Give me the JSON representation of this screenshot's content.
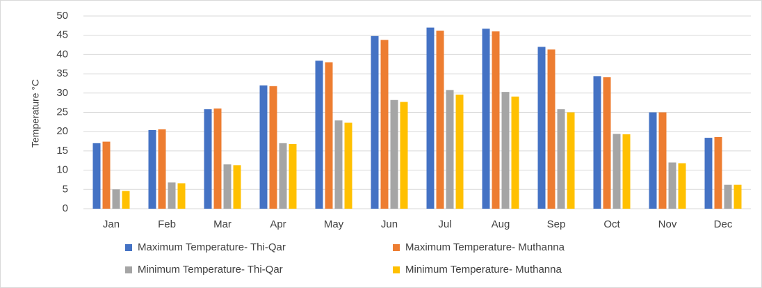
{
  "chart_data": {
    "type": "bar",
    "y_label": "Temperature °C",
    "categories": [
      "Jan",
      "Feb",
      "Mar",
      "Apr",
      "May",
      "Jun",
      "Jul",
      "Aug",
      "Sep",
      "Oct",
      "Nov",
      "Dec"
    ],
    "series": [
      {
        "name": "Maximum Temperature- Thi-Qar",
        "color": "#4472c4",
        "values": [
          17,
          20.4,
          25.8,
          32,
          38.4,
          44.8,
          47,
          46.7,
          42,
          34.4,
          25,
          18.4
        ]
      },
      {
        "name": "Maximum Temperature- Muthanna",
        "color": "#ed7d31",
        "values": [
          17.4,
          20.6,
          26,
          31.8,
          38,
          43.8,
          46.2,
          46,
          41.3,
          34.1,
          25,
          18.6
        ]
      },
      {
        "name": "Minimum Temperature- Thi-Qar",
        "color": "#a5a5a5",
        "values": [
          5,
          6.8,
          11.5,
          17,
          22.9,
          28.2,
          30.8,
          30.3,
          25.8,
          19.4,
          12,
          6.2
        ]
      },
      {
        "name": "Minimum Temperature- Muthanna",
        "color": "#ffc000",
        "values": [
          4.6,
          6.6,
          11.3,
          16.8,
          22.3,
          27.7,
          29.6,
          29.1,
          25,
          19.3,
          11.8,
          6.2
        ]
      }
    ],
    "ylim": [
      0,
      50
    ],
    "yticks": [
      0,
      5,
      10,
      15,
      20,
      25,
      30,
      35,
      40,
      45,
      50
    ],
    "grid": true
  }
}
